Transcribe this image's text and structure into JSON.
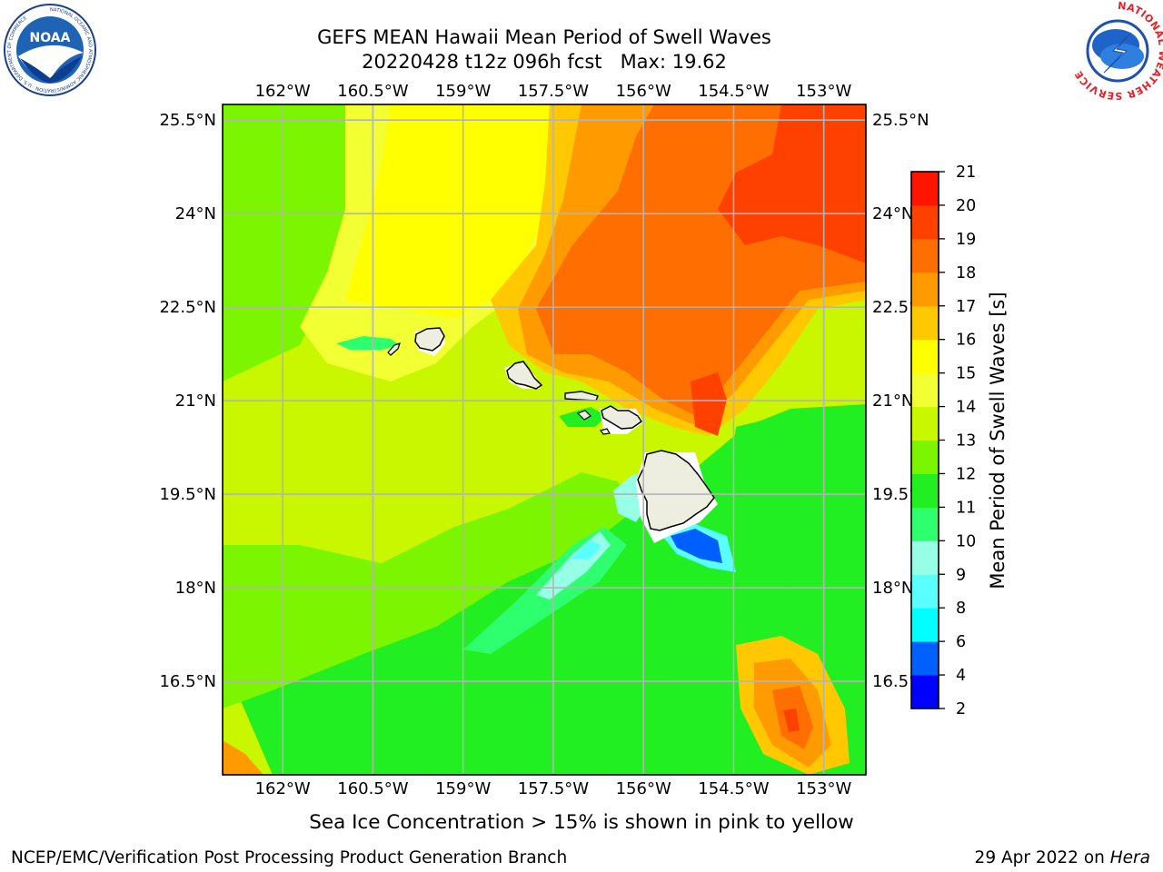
{
  "title": {
    "line1": "GEFS MEAN Hawaii Mean Period of Swell Waves",
    "line2": "20220428 t12z 096h fcst   Max: 19.62"
  },
  "map": {
    "lon_ticks": [
      "162°W",
      "160.5°W",
      "159°W",
      "157.5°W",
      "156°W",
      "154.5°W",
      "153°W"
    ],
    "lat_ticks": [
      "25.5°N",
      "24°N",
      "22.5°N",
      "21°N",
      "19.5°N",
      "18°N",
      "16.5°N"
    ],
    "lon_values": [
      -162,
      -160.5,
      -159,
      -157.5,
      -156,
      -154.5,
      -153
    ],
    "lat_values": [
      25.5,
      24,
      22.5,
      21,
      19.5,
      18,
      16.5
    ],
    "lon_range": [
      -163,
      -152.3
    ],
    "lat_range": [
      15,
      25.75
    ],
    "grid": true
  },
  "colorbar": {
    "label": "Mean Period of Swell Waves [s]",
    "levels": [
      2,
      4,
      6,
      8,
      9,
      10,
      11,
      12,
      13,
      14,
      15,
      16,
      17,
      18,
      19,
      20,
      21
    ],
    "tick_labels": [
      "2",
      "4",
      "6",
      "8",
      "9",
      "10",
      "11",
      "12",
      "13",
      "14",
      "15",
      "16",
      "17",
      "18",
      "19",
      "20",
      "21"
    ],
    "colors": [
      "#0000ff",
      "#0060ff",
      "#00ffff",
      "#5affff",
      "#96ffe6",
      "#2eff6e",
      "#21ef21",
      "#7cf500",
      "#c9f700",
      "#f2ff33",
      "#ffff00",
      "#ffc800",
      "#ff9b00",
      "#ff6e00",
      "#ff4100",
      "#ff1400"
    ],
    "colors_note_ignore": ""
  },
  "notes": {
    "sea_ice": "Sea Ice Concentration > 15% is shown in pink to yellow",
    "credit": "NCEP/EMC/Verification Post Processing Product Generation Branch",
    "date": "29 Apr 2022 on ",
    "machine": "Hera"
  },
  "logos": {
    "noaa_text": "NOAA",
    "noaa_ring": "NATIONAL OCEANIC AND ATMOSPHERIC ADMINISTRATION · U.S. DEPARTMENT OF COMMERCE",
    "nws_ring": "NATIONAL WEATHER SERVICE"
  }
}
